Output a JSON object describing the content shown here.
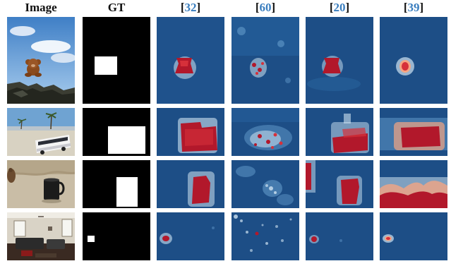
{
  "figure": {
    "headers": {
      "image": "Image",
      "gt": "GT",
      "m1": "32",
      "m2": "60",
      "m3": "20",
      "m4": "39"
    },
    "colors": {
      "heat_bg": "#1d4e86",
      "heat_dark": "#133a6b",
      "heat_hot": "#b2182b",
      "heat_light": "#cfe3f1",
      "citation": "#3a7ebf",
      "mask_bg": "#000000",
      "mask_fg": "#ffffff"
    },
    "rows": [
      {
        "scene": "teddy bear on rocky hill under blue sky"
      },
      {
        "scene": "white bus on sandy beach with palm trees"
      },
      {
        "scene": "black mug in sandy field with animal"
      },
      {
        "scene": "living room interior"
      }
    ]
  }
}
